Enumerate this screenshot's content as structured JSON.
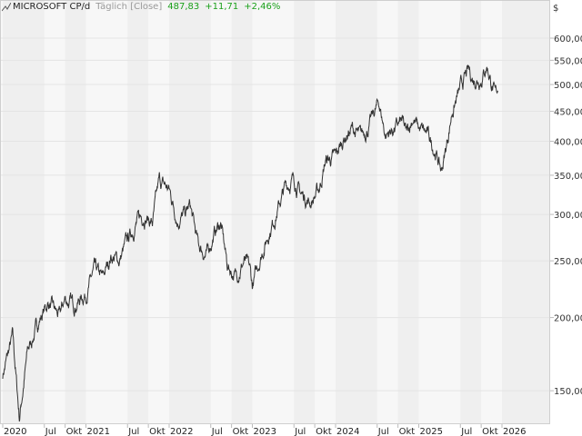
{
  "header": {
    "title": "MICROSOFT CP/d",
    "interval": "Täglich [Close]",
    "last": "487,83",
    "change": "+11,71",
    "change_pct": "+2,46%"
  },
  "colors": {
    "line": "#333333",
    "positive": "#1aa01a",
    "band_dark": "#efefef",
    "band_light": "#f7f7f7"
  },
  "chart_data": {
    "type": "line",
    "title": "MICROSOFT CP/d",
    "yscale": "log",
    "currency_label": "$",
    "ylim": [
      128,
      680
    ],
    "xlim": [
      2019.97,
      2026.65
    ],
    "grid": true,
    "y_ticks": [
      {
        "value": 150,
        "label": "150,00"
      },
      {
        "value": 200,
        "label": "200,00"
      },
      {
        "value": 250,
        "label": "250,00"
      },
      {
        "value": 300,
        "label": "300,00"
      },
      {
        "value": 350,
        "label": "350,00"
      },
      {
        "value": 400,
        "label": "400,00"
      },
      {
        "value": 450,
        "label": "450,00"
      },
      {
        "value": 500,
        "label": "500,00"
      },
      {
        "value": 550,
        "label": "550,00"
      },
      {
        "value": 600,
        "label": "600,00"
      }
    ],
    "x_ticks": [
      {
        "value": 2020.0,
        "label": "2020"
      },
      {
        "value": 2020.5,
        "label": "Jul"
      },
      {
        "value": 2020.75,
        "label": "Okt"
      },
      {
        "value": 2021.0,
        "label": "2021"
      },
      {
        "value": 2021.5,
        "label": "Jul"
      },
      {
        "value": 2021.75,
        "label": "Okt"
      },
      {
        "value": 2022.0,
        "label": "2022"
      },
      {
        "value": 2022.5,
        "label": "Jul"
      },
      {
        "value": 2022.75,
        "label": "Okt"
      },
      {
        "value": 2023.0,
        "label": "2023"
      },
      {
        "value": 2023.5,
        "label": "Jul"
      },
      {
        "value": 2023.75,
        "label": "Okt"
      },
      {
        "value": 2024.0,
        "label": "2024"
      },
      {
        "value": 2024.5,
        "label": "Jul"
      },
      {
        "value": 2024.75,
        "label": "Okt"
      },
      {
        "value": 2025.0,
        "label": "2025"
      },
      {
        "value": 2025.5,
        "label": "Jul"
      },
      {
        "value": 2025.75,
        "label": "Okt"
      },
      {
        "value": 2026.0,
        "label": "2026"
      }
    ],
    "series": [
      {
        "x": [
          2020.0,
          2020.12,
          2020.2,
          2020.3,
          2020.45,
          2020.55,
          2020.68,
          2020.75,
          2020.85,
          2021.0,
          2021.1,
          2021.2,
          2021.3,
          2021.4,
          2021.5,
          2021.6,
          2021.7,
          2021.8,
          2021.88,
          2021.95,
          2022.0,
          2022.1,
          2022.2,
          2022.25,
          2022.35,
          2022.45,
          2022.55,
          2022.62,
          2022.7,
          2022.8,
          2022.9,
          2022.97,
          2023.0,
          2023.1,
          2023.2,
          2023.3,
          2023.4,
          2023.5,
          2023.58,
          2023.7,
          2023.8,
          2023.88,
          2024.0,
          2024.1,
          2024.2,
          2024.3,
          2024.4,
          2024.52,
          2024.6,
          2024.7,
          2024.8,
          2024.85,
          2024.93,
          2025.0,
          2025.1,
          2025.2,
          2025.27,
          2025.33,
          2025.4,
          2025.5,
          2025.55,
          2025.6,
          2025.65,
          2025.75,
          2025.82,
          2025.88,
          2025.92,
          2025.95
        ],
        "y": [
          160,
          185,
          135,
          175,
          200,
          212,
          200,
          215,
          210,
          220,
          240,
          232,
          255,
          250,
          270,
          290,
          300,
          290,
          340,
          335,
          330,
          295,
          300,
          310,
          265,
          255,
          280,
          290,
          245,
          235,
          250,
          240,
          225,
          255,
          280,
          305,
          335,
          345,
          325,
          315,
          330,
          370,
          375,
          405,
          420,
          405,
          425,
          465,
          410,
          420,
          430,
          410,
          440,
          420,
          410,
          385,
          355,
          390,
          450,
          490,
          510,
          525,
          510,
          515,
          540,
          500,
          475,
          488
        ]
      }
    ]
  }
}
